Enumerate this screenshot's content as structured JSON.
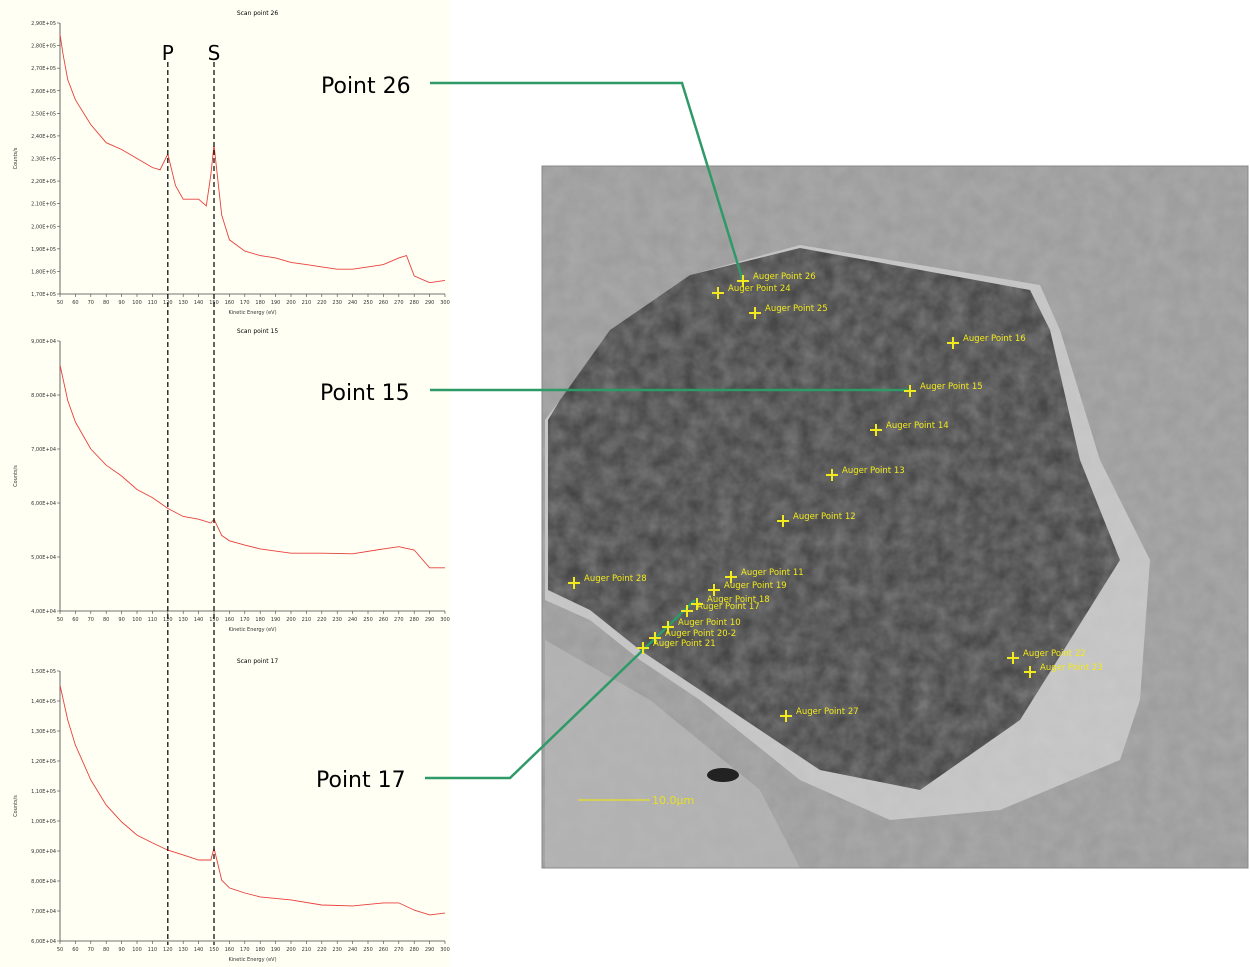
{
  "chart_data": [
    {
      "type": "line",
      "title": "Scan point 26",
      "x_label": "Kinetic Energy (eV)",
      "y_label": "Counts/s",
      "color": "#e8413c",
      "x": [
        50,
        52,
        55,
        60,
        70,
        80,
        90,
        100,
        110,
        115,
        120,
        125,
        130,
        140,
        145,
        148,
        150,
        155,
        160,
        170,
        180,
        190,
        200,
        210,
        220,
        230,
        240,
        250,
        260,
        270,
        275,
        280,
        290,
        300
      ],
      "values": [
        285000,
        276000,
        265000,
        256000,
        245000,
        237000,
        234000,
        230000,
        226000,
        225000,
        232000,
        218000,
        212000,
        212000,
        209000,
        223000,
        236000,
        205000,
        194000,
        189000,
        187000,
        186000,
        184000,
        183000,
        182000,
        181000,
        181000,
        182000,
        183000,
        186000,
        187000,
        178000,
        175000,
        176000
      ],
      "xlim": [
        50,
        300
      ],
      "xticks": [
        50,
        60,
        70,
        80,
        90,
        100,
        110,
        120,
        130,
        140,
        150,
        160,
        170,
        180,
        190,
        200,
        210,
        220,
        230,
        240,
        250,
        260,
        270,
        280,
        290,
        300
      ],
      "ylim": [
        170000,
        290000
      ],
      "yticks": [
        {
          "value": 170000,
          "label": "1,70E+05"
        },
        {
          "value": 180000,
          "label": "1,80E+05"
        },
        {
          "value": 190000,
          "label": "1,90E+05"
        },
        {
          "value": 200000,
          "label": "2,00E+05"
        },
        {
          "value": 210000,
          "label": "2,10E+05"
        },
        {
          "value": 220000,
          "label": "2,20E+05"
        },
        {
          "value": 230000,
          "label": "2,30E+05"
        },
        {
          "value": 240000,
          "label": "2,40E+05"
        },
        {
          "value": 250000,
          "label": "2,50E+05"
        },
        {
          "value": 260000,
          "label": "2,60E+05"
        },
        {
          "value": 270000,
          "label": "2,70E+05"
        },
        {
          "value": 280000,
          "label": "2,80E+05"
        },
        {
          "value": 290000,
          "label": "2,90E+05"
        }
      ]
    },
    {
      "type": "line",
      "title": "Scan point 15",
      "x_label": "Kinetic Energy (eV)",
      "y_label": "Counts/s",
      "color": "#e8413c",
      "x": [
        50,
        55,
        60,
        70,
        80,
        90,
        100,
        110,
        120,
        130,
        140,
        148,
        150,
        155,
        160,
        170,
        180,
        200,
        220,
        240,
        260,
        270,
        280,
        290,
        300
      ],
      "values": [
        85600,
        79000,
        75000,
        70000,
        67000,
        65000,
        62500,
        61000,
        59000,
        57500,
        57000,
        56300,
        57000,
        54000,
        53000,
        52200,
        51500,
        50700,
        50700,
        50600,
        51500,
        51900,
        51300,
        48000,
        48000
      ],
      "xlim": [
        50,
        300
      ],
      "xticks": [
        50,
        60,
        70,
        80,
        90,
        100,
        110,
        120,
        130,
        140,
        150,
        160,
        170,
        180,
        190,
        200,
        210,
        220,
        230,
        240,
        250,
        260,
        270,
        280,
        290,
        300
      ],
      "ylim": [
        40000,
        90000
      ],
      "yticks": [
        {
          "value": 40000,
          "label": "4,00E+04"
        },
        {
          "value": 50000,
          "label": "5,00E+04"
        },
        {
          "value": 60000,
          "label": "6,00E+04"
        },
        {
          "value": 70000,
          "label": "7,00E+04"
        },
        {
          "value": 80000,
          "label": "8,00E+04"
        },
        {
          "value": 90000,
          "label": "9,00E+04"
        }
      ]
    },
    {
      "type": "line",
      "title": "Scan point 17",
      "x_label": "Kinetic Energy (eV)",
      "y_label": "Counts/s",
      "color": "#e8413c",
      "x": [
        50,
        55,
        60,
        70,
        80,
        90,
        100,
        110,
        120,
        130,
        140,
        148,
        150,
        155,
        160,
        170,
        180,
        200,
        220,
        240,
        260,
        270,
        280,
        290,
        300
      ],
      "values": [
        145300,
        133700,
        125300,
        113700,
        105300,
        99700,
        95300,
        92700,
        90300,
        88700,
        87000,
        87000,
        91000,
        80300,
        77700,
        76000,
        74700,
        73700,
        72000,
        71700,
        72700,
        72700,
        70300,
        68700,
        69300
      ],
      "xlim": [
        50,
        300
      ],
      "xticks": [
        50,
        60,
        70,
        80,
        90,
        100,
        110,
        120,
        130,
        140,
        150,
        160,
        170,
        180,
        190,
        200,
        210,
        220,
        230,
        240,
        250,
        260,
        270,
        280,
        290,
        300
      ],
      "ylim": [
        60000,
        150000
      ],
      "yticks": [
        {
          "value": 60000,
          "label": "6,00E+04"
        },
        {
          "value": 70000,
          "label": "7,00E+04"
        },
        {
          "value": 80000,
          "label": "8,00E+04"
        },
        {
          "value": 90000,
          "label": "9,00E+04"
        },
        {
          "value": 100000,
          "label": "1,00E+05"
        },
        {
          "value": 110000,
          "label": "1,10E+05"
        },
        {
          "value": 120000,
          "label": "1,20E+05"
        },
        {
          "value": 130000,
          "label": "1,30E+05"
        },
        {
          "value": 140000,
          "label": "1,40E+05"
        },
        {
          "value": 150000,
          "label": "1,50E+05"
        }
      ]
    }
  ],
  "reference_lines": [
    {
      "label": "P",
      "x": 120
    },
    {
      "label": "S",
      "x": 150
    }
  ],
  "callouts": [
    "Point 26",
    "Point 15",
    "Point 17"
  ],
  "micrograph": {
    "scale_bar": "10.0µm",
    "points": [
      "Auger Point 26",
      "Auger Point 24",
      "Auger Point 25",
      "Auger Point 16",
      "Auger Point 15",
      "Auger Point 14",
      "Auger Point 13",
      "Auger Point 12",
      "Auger Point 28",
      "Auger Point 11",
      "Auger Point 19",
      "Auger Point 18",
      "Auger Point 17",
      "Auger Point 10",
      "Auger Point 20-2",
      "Auger Point 21",
      "Auger Point 22",
      "Auger Point 23",
      "Auger Point 27"
    ]
  }
}
